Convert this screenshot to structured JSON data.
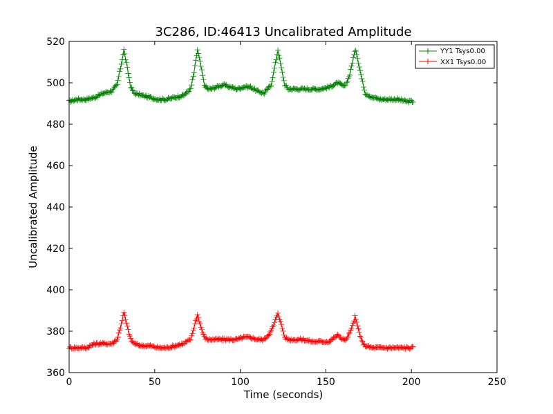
{
  "chart_data": {
    "type": "line",
    "title": "3C286, ID:46413 Uncalibrated Amplitude",
    "xlabel": "Time (seconds)",
    "ylabel": "Uncalibrated Amplitude",
    "xlim": [
      0,
      250
    ],
    "ylim": [
      360,
      520
    ],
    "xticks": [
      "0",
      "50",
      "100",
      "150",
      "200",
      "250"
    ],
    "yticks": [
      "360",
      "380",
      "400",
      "420",
      "440",
      "460",
      "480",
      "500",
      "520"
    ],
    "grid": false,
    "legend_position": "top-right",
    "marker": "plus",
    "series": [
      {
        "name": "YY1 Tsys0.00",
        "color": "#008000",
        "x": [
          0,
          5,
          10,
          15,
          20,
          25,
          28,
          30,
          32,
          34,
          36,
          38,
          42,
          47,
          52,
          57,
          62,
          67,
          71,
          73,
          75,
          77,
          79,
          81,
          83,
          86,
          90,
          94,
          98,
          102,
          106,
          110,
          114,
          118,
          120,
          122,
          124,
          126,
          128,
          132,
          137,
          142,
          147,
          152,
          157,
          161,
          164,
          166,
          167.5,
          169,
          171,
          173,
          177,
          182,
          187,
          192,
          197,
          201
        ],
        "y": [
          491,
          492,
          492,
          493,
          495,
          496,
          499,
          507,
          516,
          507,
          498,
          495,
          494,
          493,
          492,
          492,
          493,
          494,
          497,
          505,
          516,
          508,
          499,
          497,
          497,
          498,
          499,
          498,
          497,
          498,
          498,
          496,
          495,
          499,
          507,
          516,
          507,
          499,
          497,
          497,
          497,
          497,
          497,
          498,
          500,
          498,
          504,
          512,
          516,
          510,
          502,
          495,
          493,
          492,
          492,
          492,
          491,
          491
        ]
      },
      {
        "name": "XX1 Tsys0.00",
        "color": "#ff0000",
        "x": [
          0,
          5,
          10,
          15,
          20,
          25,
          28,
          30,
          32,
          34,
          36,
          38,
          42,
          47,
          52,
          57,
          62,
          67,
          71,
          73,
          75,
          77,
          79,
          81,
          83,
          86,
          90,
          94,
          98,
          102,
          106,
          110,
          114,
          118,
          120,
          122,
          124,
          126,
          128,
          132,
          137,
          142,
          147,
          152,
          155,
          157,
          160,
          162,
          165,
          167,
          169,
          171,
          173,
          177,
          182,
          187,
          192,
          197,
          201
        ],
        "y": [
          372,
          372,
          372,
          374,
          374,
          374,
          376,
          382,
          389,
          382,
          376,
          374,
          373,
          373,
          372,
          372,
          373,
          374,
          376,
          382,
          388,
          382,
          377,
          376,
          376,
          376,
          376,
          376,
          376,
          377,
          377,
          376,
          376,
          380,
          384,
          389,
          383,
          377,
          376,
          376,
          376,
          375,
          375,
          375,
          377,
          378,
          376,
          376,
          381,
          387,
          381,
          375,
          373,
          372,
          372,
          372,
          372,
          372,
          372
        ]
      }
    ]
  }
}
